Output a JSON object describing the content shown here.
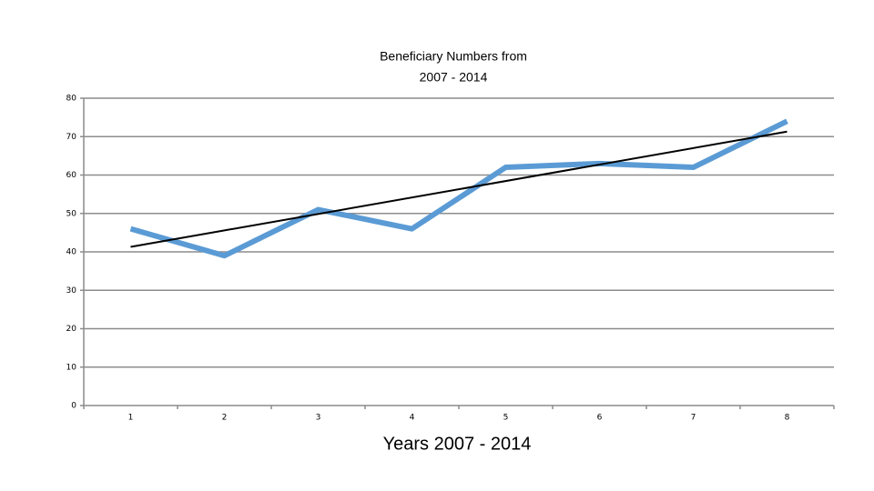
{
  "chart_data": {
    "type": "line",
    "title": [
      "Beneficiary Numbers  from",
      "2007 - 2014"
    ],
    "x_label": "Years 2007 - 2014",
    "categories": [
      "1",
      "2",
      "3",
      "4",
      "5",
      "6",
      "7",
      "8"
    ],
    "series": [
      {
        "color": "#5b9bd5",
        "values": [
          46,
          39,
          51,
          46,
          62,
          63,
          62,
          74
        ]
      }
    ],
    "trendline": {
      "color": "#000000",
      "x": [
        1,
        8
      ],
      "values": [
        41.3,
        71.3
      ]
    },
    "ylim": [
      0,
      80
    ],
    "yticks": [
      0,
      10,
      20,
      30,
      40,
      50,
      60,
      70,
      80
    ],
    "grid": true
  }
}
